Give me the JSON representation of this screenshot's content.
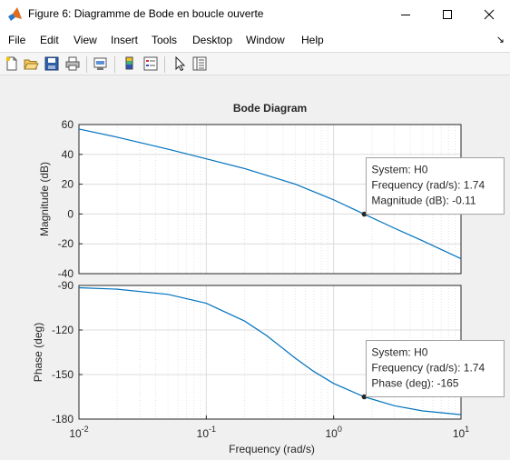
{
  "window": {
    "title": "Figure 6: Diagramme de Bode en boucle ouverte"
  },
  "menu": {
    "items": [
      "File",
      "Edit",
      "View",
      "Insert",
      "Tools",
      "Desktop",
      "Window",
      "Help"
    ]
  },
  "toolbar": {
    "buttons": [
      "new-figure-icon",
      "open-file-icon",
      "save-icon",
      "print-icon",
      "link-plot-icon",
      "insert-colorbar-icon",
      "insert-legend-icon",
      "edit-plot-arrow-icon",
      "property-inspector-icon"
    ]
  },
  "chart_data": {
    "type": "line",
    "title": "Bode Diagram",
    "xlabel": "Frequency  (rad/s)",
    "xscale": "log",
    "xlim": [
      0.01,
      10
    ],
    "x_ticks": [
      "10^-2",
      "10^-1",
      "10^0",
      "10^1"
    ],
    "grid": true,
    "color": "#0072bd",
    "subplots": [
      {
        "name": "magnitude",
        "ylabel": "Magnitude (dB)",
        "ylim": [
          -40,
          60
        ],
        "y_ticks": [
          60,
          40,
          20,
          0,
          -20,
          -40
        ],
        "x": [
          0.01,
          0.02,
          0.05,
          0.1,
          0.2,
          0.5,
          1,
          1.74,
          3,
          5,
          10
        ],
        "y": [
          57,
          51.5,
          43.5,
          37,
          30.5,
          20,
          9.5,
          -0.11,
          -9.5,
          -18,
          -30
        ],
        "datatip": {
          "x": 1.74,
          "y": -0.11,
          "lines": [
            "System: H0",
            "Frequency (rad/s): 1.74",
            "Magnitude (dB): -0.11"
          ]
        }
      },
      {
        "name": "phase",
        "ylabel": "Phase (deg)",
        "ylim": [
          -180,
          -90
        ],
        "y_ticks": [
          -90,
          -120,
          -150,
          -180
        ],
        "x": [
          0.01,
          0.02,
          0.05,
          0.1,
          0.2,
          0.3,
          0.5,
          0.7,
          1,
          1.74,
          3,
          5,
          10
        ],
        "y": [
          -91.5,
          -92.5,
          -96,
          -102,
          -114,
          -124,
          -139,
          -148,
          -156,
          -165,
          -171,
          -174.5,
          -177
        ],
        "datatip": {
          "x": 1.74,
          "y": -165,
          "lines": [
            "System: H0",
            "Frequency (rad/s): 1.74",
            "Phase (deg): -165"
          ]
        }
      }
    ]
  }
}
